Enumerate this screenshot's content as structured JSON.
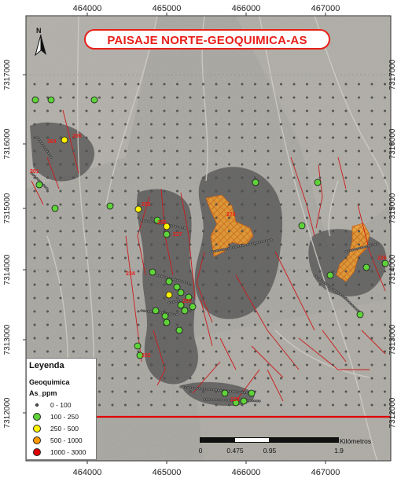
{
  "title": "PAISAJE NORTE-GEOQUIMICA-AS",
  "north_label": "N",
  "coords": {
    "x_ticks": [
      "464000",
      "465000",
      "466000",
      "467000"
    ],
    "y_ticks": [
      "7317000",
      "7316000",
      "7315000",
      "7314000",
      "7313000",
      "7312000"
    ]
  },
  "legend": {
    "title": "Leyenda",
    "group": "Geoquimica",
    "field": "As_ppm",
    "classes": [
      {
        "label": "0 - 100",
        "color": "#666666"
      },
      {
        "label": "100 - 250",
        "color": "#5fd33a"
      },
      {
        "label": "250 - 500",
        "color": "#fff200"
      },
      {
        "label": "500 - 1000",
        "color": "#ff9a00"
      },
      {
        "label": "1000 - 3000",
        "color": "#e00000"
      }
    ]
  },
  "scale": {
    "unit": "Kilómetros",
    "labels": [
      "0",
      "0.475",
      "0.95",
      "1.9"
    ]
  },
  "sample_labels": [
    "202",
    "252",
    "234",
    "226",
    "228",
    "206",
    "274",
    "227",
    "301",
    "253",
    "364",
    "255"
  ],
  "colors": {
    "title_red": "#e8201a",
    "fault_red": "#cc1a1a",
    "alteration_orange": "#f0a030",
    "background": "#9a9892"
  }
}
